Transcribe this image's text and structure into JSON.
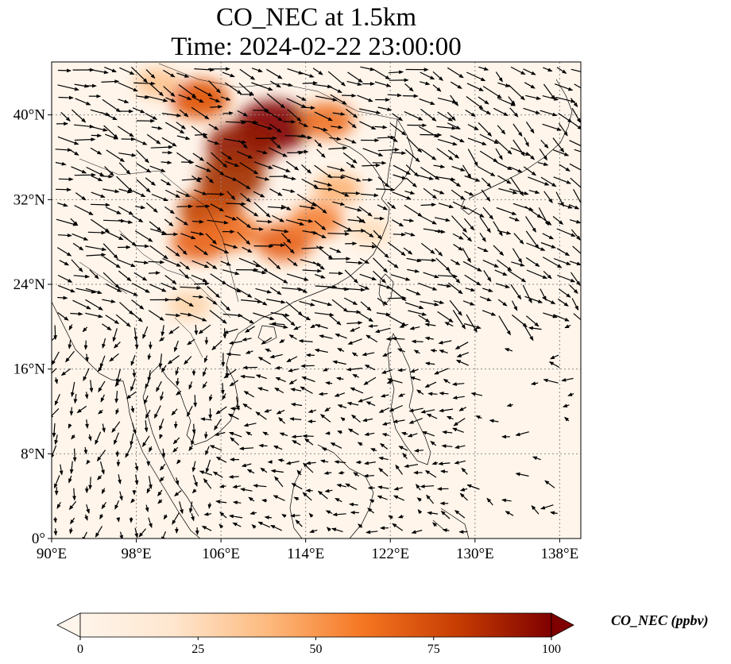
{
  "title": {
    "line1": "CO_NEC at 1.5km",
    "line2": "Time: 2024-02-22 23:00:00"
  },
  "map": {
    "lon_range": [
      90,
      140
    ],
    "lat_range": [
      0,
      45
    ],
    "lon_ticks": [
      {
        "value": 90,
        "label": "90°E"
      },
      {
        "value": 98,
        "label": "98°E"
      },
      {
        "value": 106,
        "label": "106°E"
      },
      {
        "value": 114,
        "label": "114°E"
      },
      {
        "value": 122,
        "label": "122°E"
      },
      {
        "value": 130,
        "label": "130°E"
      },
      {
        "value": 138,
        "label": "138°E"
      }
    ],
    "lat_ticks": [
      {
        "value": 0,
        "label": "0°"
      },
      {
        "value": 8,
        "label": "8°N"
      },
      {
        "value": 16,
        "label": "16°N"
      },
      {
        "value": 24,
        "label": "24°N"
      },
      {
        "value": 32,
        "label": "32°N"
      },
      {
        "value": 40,
        "label": "40°N"
      }
    ],
    "gridlines": "dotted",
    "background_color": "#fff5eb",
    "plume_regions": [
      {
        "lon": 111,
        "lat": 39,
        "value": 100
      },
      {
        "lon": 108,
        "lat": 37,
        "value": 90
      },
      {
        "lon": 107,
        "lat": 34,
        "value": 80
      },
      {
        "lon": 105,
        "lat": 31,
        "value": 70
      },
      {
        "lon": 104,
        "lat": 28,
        "value": 55
      },
      {
        "lon": 107,
        "lat": 29,
        "value": 50
      },
      {
        "lon": 112,
        "lat": 28,
        "value": 55
      },
      {
        "lon": 115,
        "lat": 30,
        "value": 45
      },
      {
        "lon": 104,
        "lat": 41.5,
        "value": 60
      },
      {
        "lon": 100,
        "lat": 43,
        "value": 25
      },
      {
        "lon": 116,
        "lat": 39.5,
        "value": 50
      },
      {
        "lon": 117,
        "lat": 33,
        "value": 30
      },
      {
        "lon": 103,
        "lat": 22,
        "value": 20
      },
      {
        "lon": 120,
        "lat": 29,
        "value": 15
      }
    ]
  },
  "colorbar": {
    "min": 0,
    "max": 100,
    "ticks": [
      {
        "value": 0,
        "label": "0"
      },
      {
        "value": 25,
        "label": "25"
      },
      {
        "value": 50,
        "label": "50"
      },
      {
        "value": 75,
        "label": "75"
      },
      {
        "value": 100,
        "label": "100"
      }
    ],
    "colors": [
      "#fff5eb",
      "#fdd2a5",
      "#fd9243",
      "#df4f05",
      "#a33003",
      "#7f0000"
    ],
    "label": "CO_NEC (ppbv)",
    "extend": "both"
  }
}
